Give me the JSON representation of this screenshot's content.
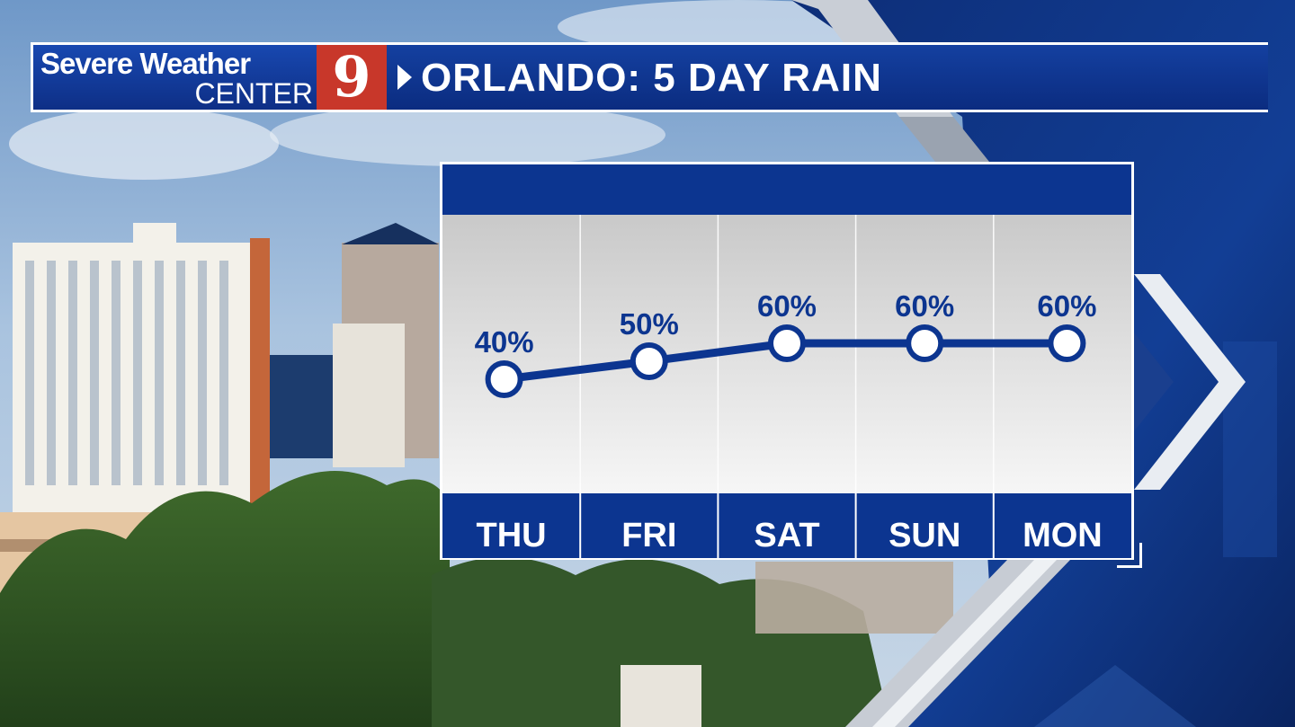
{
  "header": {
    "brand_line1": "Severe Weather",
    "brand_line2": "CENTER",
    "channel_logo": "9",
    "title": "ORLANDO: 5 DAY RAIN"
  },
  "colors": {
    "primary_blue": "#0c3590",
    "logo_red": "#c8372a",
    "point_fill": "#ffffff",
    "text_white": "#ffffff"
  },
  "chart_data": {
    "type": "line",
    "categories": [
      "THU",
      "FRI",
      "SAT",
      "SUN",
      "MON"
    ],
    "series": [
      {
        "values": [
          40,
          50,
          60,
          60,
          60
        ]
      }
    ],
    "value_labels": [
      "40%",
      "50%",
      "60%",
      "60%",
      "60%"
    ],
    "ylabel": "",
    "xlabel": "",
    "title": "",
    "grid": true,
    "legend": "none"
  }
}
